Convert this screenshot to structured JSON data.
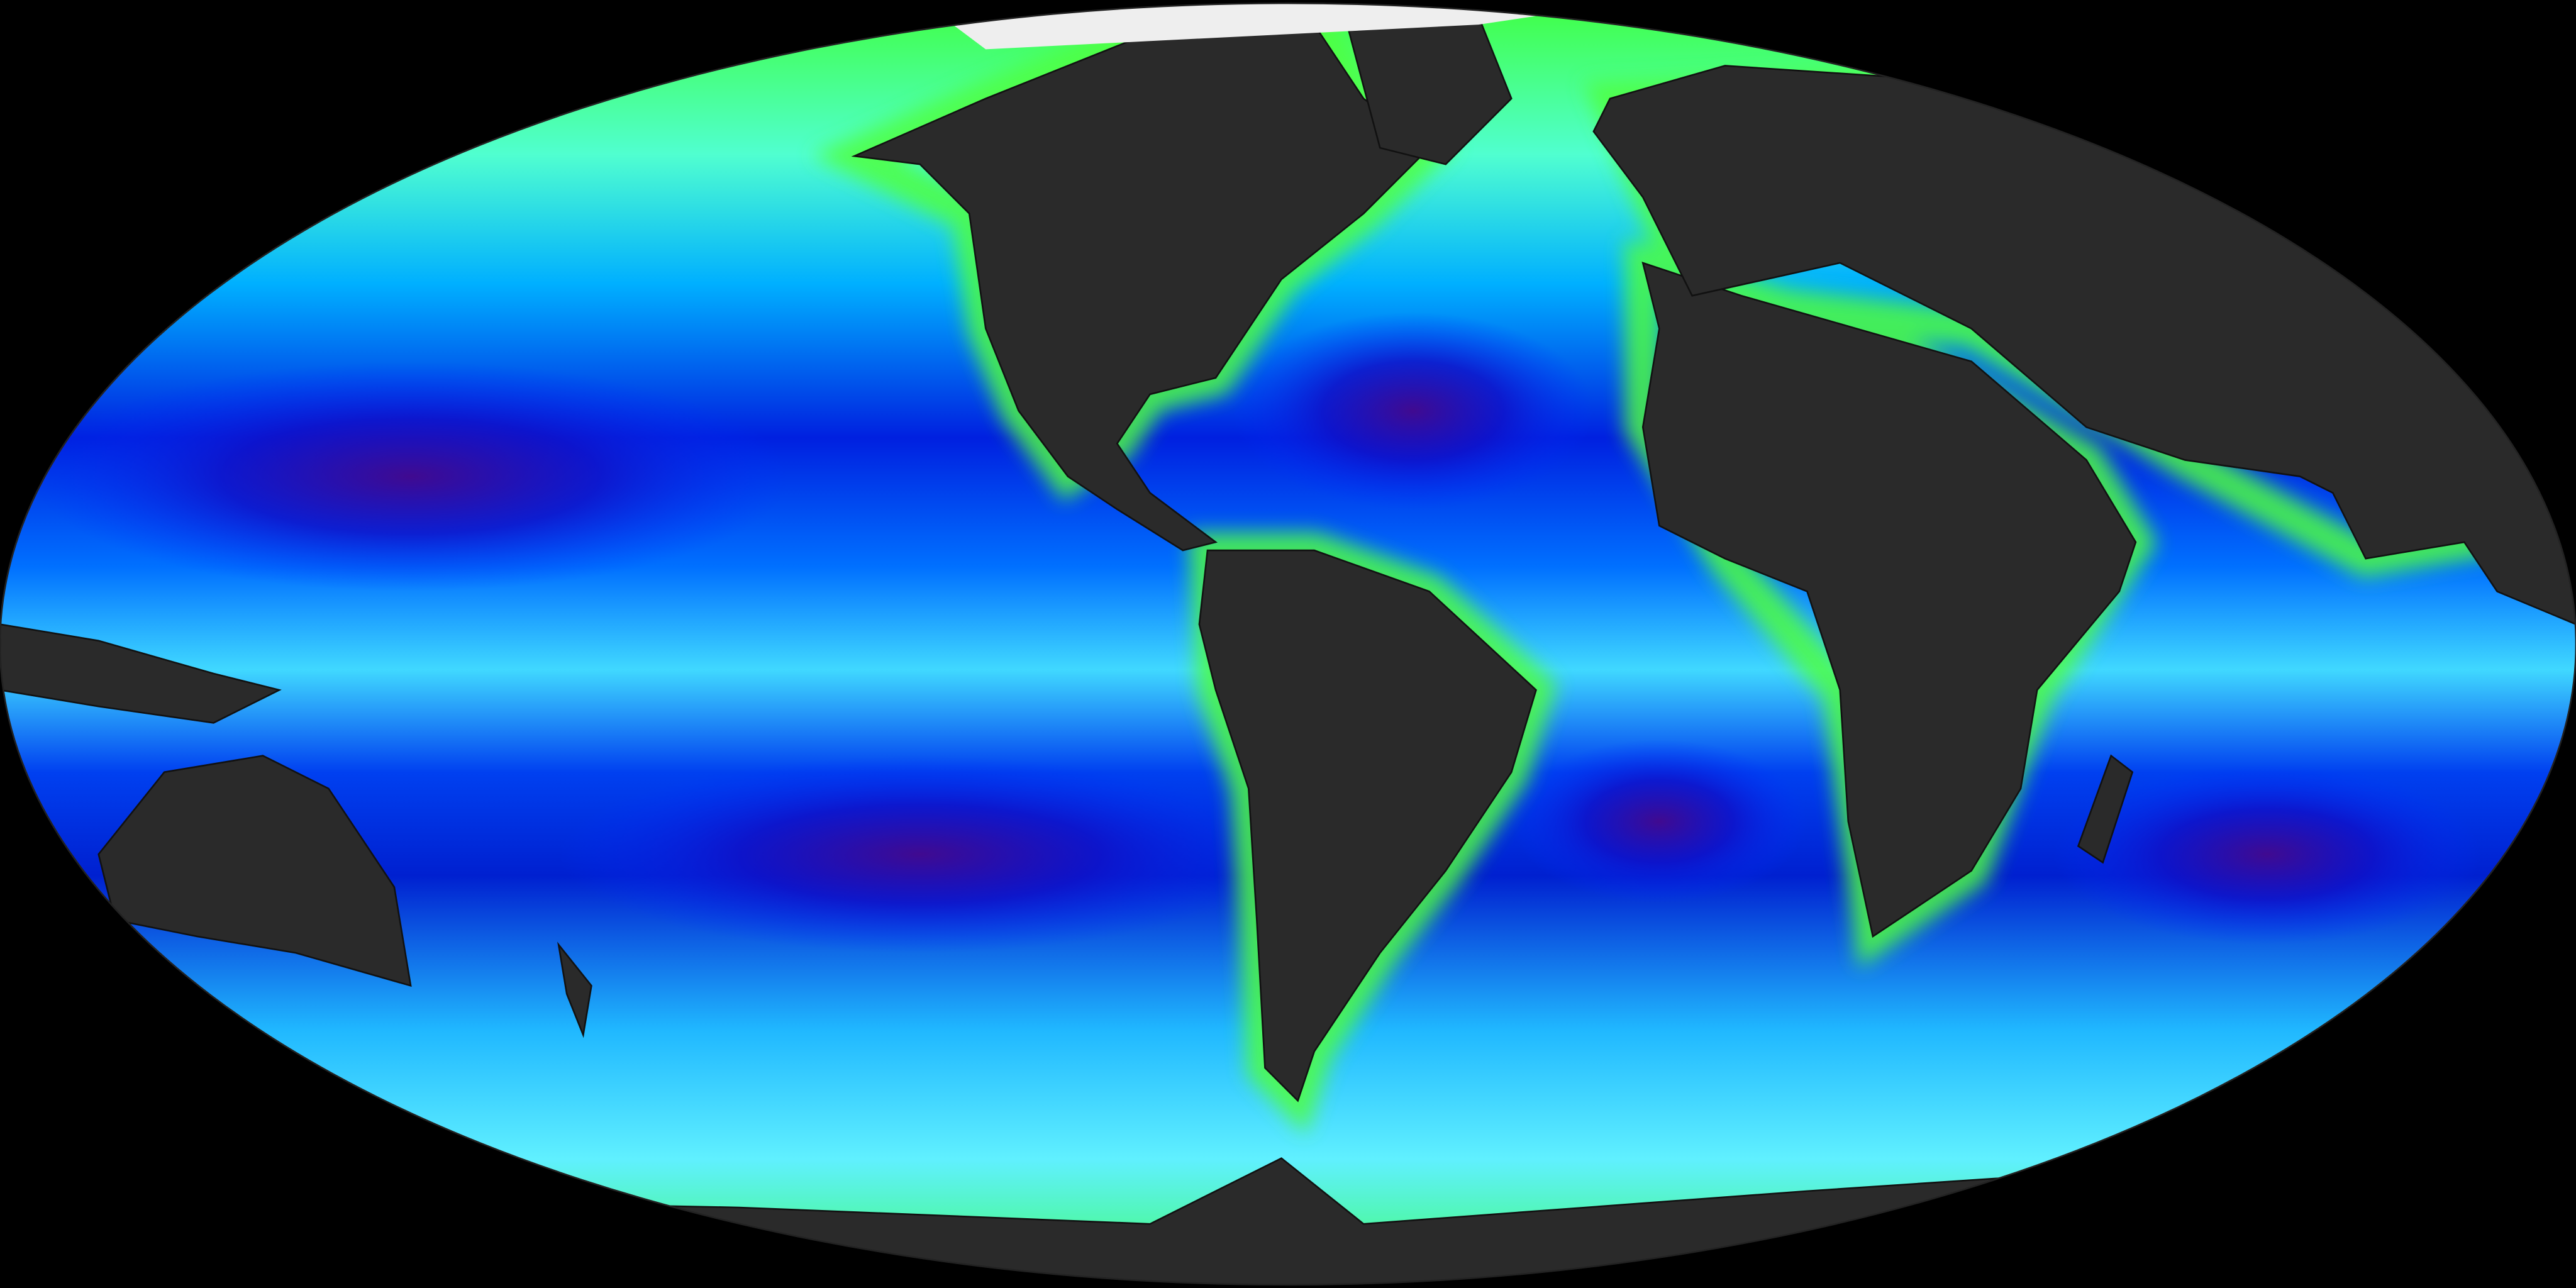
{
  "map": {
    "background_color": "#000000",
    "land_color": "#2a2a2a",
    "ice_color": "#eeeeee",
    "color_scale": [
      "#3a0a80",
      "#0010d0",
      "#0060ff",
      "#00c8ff",
      "#60ffe0",
      "#40ff40",
      "#e0ff20",
      "#ff8000",
      "#ff2000"
    ]
  }
}
